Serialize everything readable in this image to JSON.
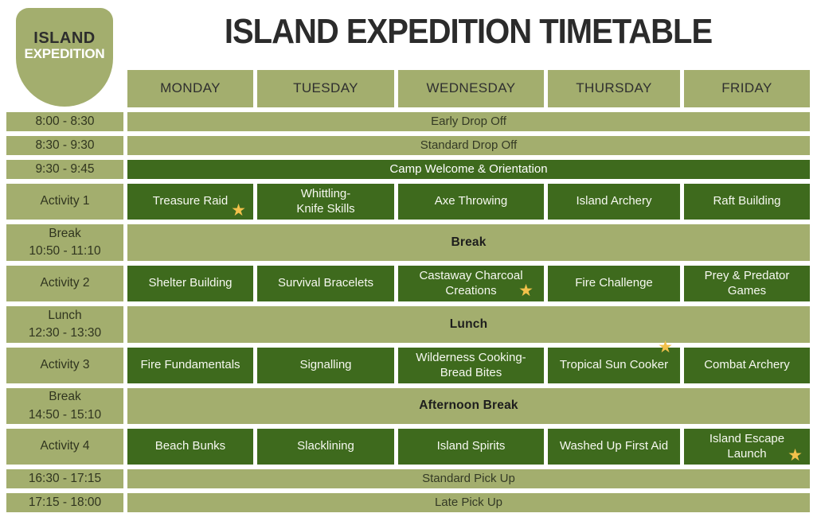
{
  "title": "ISLAND EXPEDITION TIMETABLE",
  "logo": {
    "line1": "ISLAND",
    "line2": "EXPEDITION"
  },
  "days": [
    "MONDAY",
    "TUESDAY",
    "WEDNESDAY",
    "THURSDAY",
    "FRIDAY"
  ],
  "schedule": [
    {
      "time": "8:00 - 8:30",
      "kind": "band-light",
      "label": "Early Drop Off"
    },
    {
      "time": "8:30 - 9:30",
      "kind": "band-light",
      "label": "Standard Drop Off"
    },
    {
      "time": "9:30 - 9:45",
      "kind": "band-dark",
      "label": "Camp Welcome & Orientation"
    },
    {
      "time": "Activity 1",
      "kind": "activities",
      "cells": [
        {
          "label": "Treasure Raid",
          "star": "bottom-right"
        },
        {
          "label": "Whittling-\nKnife Skills"
        },
        {
          "label": "Axe Throwing"
        },
        {
          "label": "Island Archery"
        },
        {
          "label": "Raft Building"
        }
      ]
    },
    {
      "time": "Break\n10:50 - 11:10",
      "kind": "band-bold",
      "label": "Break"
    },
    {
      "time": "Activity 2",
      "kind": "activities",
      "cells": [
        {
          "label": "Shelter Building"
        },
        {
          "label": "Survival Bracelets"
        },
        {
          "label": "Castaway Charcoal\nCreations",
          "star": "bottom-right"
        },
        {
          "label": "Fire Challenge"
        },
        {
          "label": "Prey & Predator\nGames"
        }
      ]
    },
    {
      "time": "Lunch\n12:30 - 13:30",
      "kind": "band-bold",
      "label": "Lunch"
    },
    {
      "time": "Activity 3",
      "kind": "activities",
      "cells": [
        {
          "label": "Fire Fundamentals"
        },
        {
          "label": "Signalling"
        },
        {
          "label": "Wilderness Cooking-\nBread Bites"
        },
        {
          "label": "Tropical Sun Cooker",
          "star": "top-right"
        },
        {
          "label": "Combat Archery"
        }
      ]
    },
    {
      "time": "Break\n14:50 - 15:10",
      "kind": "band-bold",
      "label": "Afternoon Break"
    },
    {
      "time": "Activity 4",
      "kind": "activities",
      "cells": [
        {
          "label": "Beach Bunks"
        },
        {
          "label": "Slacklining"
        },
        {
          "label": "Island Spirits"
        },
        {
          "label": "Washed Up First Aid"
        },
        {
          "label": "Island Escape\nLaunch",
          "star": "bottom-right"
        }
      ]
    },
    {
      "time": "16:30 - 17:15",
      "kind": "band-light",
      "label": "Standard Pick Up"
    },
    {
      "time": "17:15 - 18:00",
      "kind": "band-light",
      "label": "Late Pick Up"
    }
  ],
  "icons": {
    "star_glyph": "★"
  },
  "colors": {
    "olive": "#a3ae6e",
    "dark_green": "#3e6a1d",
    "star": "#f2c14b",
    "title_text": "#2b2b2b",
    "background": "#ffffff"
  }
}
